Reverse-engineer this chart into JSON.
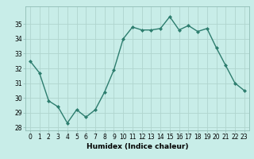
{
  "x": [
    0,
    1,
    2,
    3,
    4,
    5,
    6,
    7,
    8,
    9,
    10,
    11,
    12,
    13,
    14,
    15,
    16,
    17,
    18,
    19,
    20,
    21,
    22,
    23
  ],
  "y": [
    32.5,
    31.7,
    29.8,
    29.4,
    28.3,
    29.2,
    28.7,
    29.2,
    30.4,
    31.9,
    34.0,
    34.8,
    34.6,
    34.6,
    34.7,
    35.5,
    34.6,
    34.9,
    34.5,
    34.7,
    33.4,
    32.2,
    31.0,
    30.5
  ],
  "line_color": "#2d7d6e",
  "marker": "D",
  "markersize": 2.0,
  "linewidth": 1.0,
  "bg_color": "#c8ede8",
  "grid_color": "#b0d5ce",
  "xlabel": "Humidex (Indice chaleur)",
  "xlim": [
    -0.5,
    23.5
  ],
  "ylim": [
    27.8,
    36.2
  ],
  "yticks": [
    28,
    29,
    30,
    31,
    32,
    33,
    34,
    35
  ],
  "xticks": [
    0,
    1,
    2,
    3,
    4,
    5,
    6,
    7,
    8,
    9,
    10,
    11,
    12,
    13,
    14,
    15,
    16,
    17,
    18,
    19,
    20,
    21,
    22,
    23
  ],
  "xtick_labels": [
    "0",
    "1",
    "2",
    "3",
    "4",
    "5",
    "6",
    "7",
    "8",
    "9",
    "10",
    "11",
    "12",
    "13",
    "14",
    "15",
    "16",
    "17",
    "18",
    "19",
    "20",
    "21",
    "22",
    "23"
  ],
  "tick_fontsize": 5.5,
  "xlabel_fontsize": 6.5
}
